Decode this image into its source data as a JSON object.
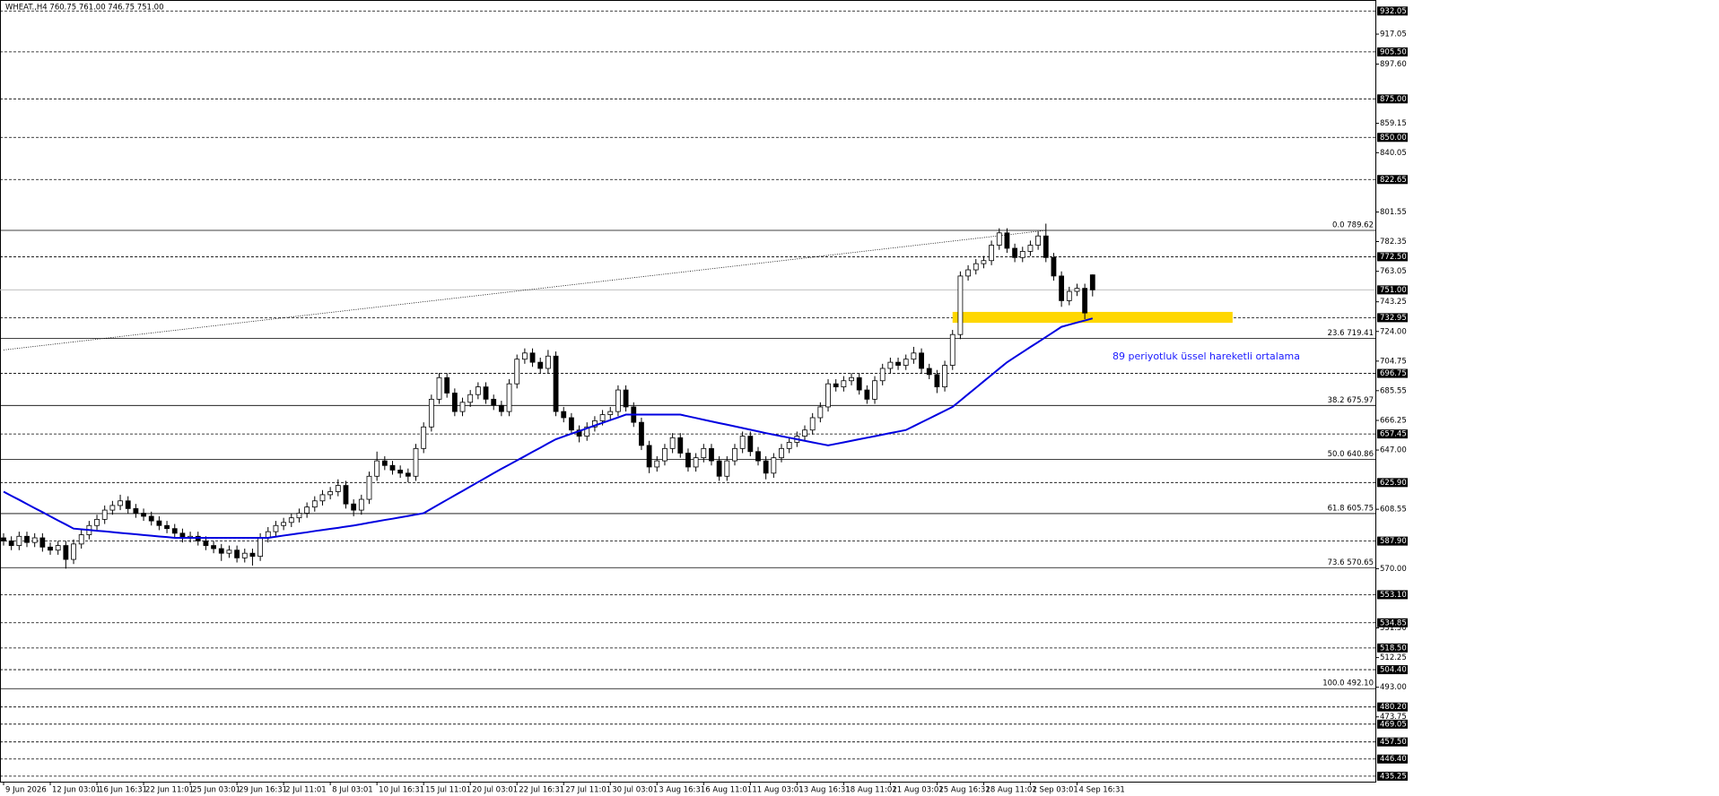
{
  "chart_data": {
    "type": "candlestick",
    "title": "WHEAT.,H4  760.75 761.00 746.75 751.00",
    "annotation": "89 periyotluk üssel hareketli ortalama",
    "ylim": [
      431.7,
      939.2
    ],
    "categories": [
      "9 Jun 2026",
      null,
      null,
      null,
      null,
      null,
      "12 Jun 03:01",
      null,
      null,
      null,
      null,
      null,
      "16 Jun 16:31",
      null,
      null,
      null,
      null,
      null,
      "22 Jun 11:01",
      null,
      null,
      null,
      null,
      null,
      "25 Jun 03:01",
      null,
      null,
      null,
      null,
      null,
      "29 Jun 16:31",
      null,
      null,
      null,
      null,
      null,
      "2 Jul 11:01",
      null,
      null,
      null,
      null,
      null,
      "8 Jul 03:01",
      null,
      null,
      null,
      null,
      null,
      "10 Jul 16:31",
      null,
      null,
      null,
      null,
      null,
      "15 Jul 11:01",
      null,
      null,
      null,
      null,
      null,
      "20 Jul 03:01",
      null,
      null,
      null,
      null,
      null,
      "22 Jul 16:31",
      null,
      null,
      null,
      null,
      null,
      "27 Jul 11:01",
      null,
      null,
      null,
      null,
      null,
      "30 Jul 03:01",
      null,
      null,
      null,
      null,
      null,
      "3 Aug 16:31",
      null,
      null,
      null,
      null,
      null,
      "6 Aug 11:01",
      null,
      null,
      null,
      null,
      null,
      "11 Aug 03:01",
      null,
      null,
      null,
      null,
      null,
      "13 Aug 16:31",
      null,
      null,
      null,
      null,
      null,
      "18 Aug 11:01",
      null,
      null,
      null,
      null,
      null,
      "21 Aug 03:01",
      null,
      null,
      null,
      null,
      null,
      "25 Aug 16:31",
      null,
      null,
      null,
      null,
      null,
      "28 Aug 11:01",
      null,
      null,
      null,
      null,
      null,
      "2 Sep 03:01",
      null,
      null,
      null,
      null,
      null,
      "4 Sep 16:31",
      null,
      null
    ],
    "candles": [
      [
        590,
        593,
        585,
        588
      ],
      [
        588,
        591,
        582,
        585
      ],
      [
        585,
        594,
        582,
        591
      ],
      [
        591,
        594,
        584,
        587
      ],
      [
        587,
        593,
        584,
        590
      ],
      [
        590,
        593,
        581,
        584
      ],
      [
        584,
        587,
        579,
        582
      ],
      [
        582,
        588,
        579,
        585
      ],
      [
        585,
        588,
        570,
        576
      ],
      [
        576,
        589,
        573,
        586
      ],
      [
        586,
        595,
        583,
        592
      ],
      [
        592,
        601,
        589,
        598
      ],
      [
        598,
        605,
        595,
        602
      ],
      [
        602,
        611,
        599,
        608
      ],
      [
        608,
        614,
        605,
        611
      ],
      [
        611,
        618,
        608,
        614
      ],
      [
        614,
        617,
        606,
        609
      ],
      [
        609,
        612,
        603,
        606
      ],
      [
        606,
        609,
        601,
        604
      ],
      [
        604,
        607,
        598,
        601
      ],
      [
        601,
        604,
        595,
        598
      ],
      [
        598,
        601,
        593,
        596
      ],
      [
        596,
        599,
        590,
        593
      ],
      [
        593,
        596,
        587,
        590
      ],
      [
        590,
        594,
        587,
        591
      ],
      [
        591,
        594,
        585,
        588
      ],
      [
        588,
        591,
        582,
        585
      ],
      [
        585,
        588,
        580,
        583
      ],
      [
        583,
        586,
        575,
        580
      ],
      [
        580,
        585,
        577,
        582
      ],
      [
        582,
        585,
        574,
        577
      ],
      [
        577,
        583,
        574,
        580
      ],
      [
        580,
        583,
        572,
        578
      ],
      [
        578,
        593,
        575,
        590
      ],
      [
        590,
        597,
        587,
        594
      ],
      [
        594,
        601,
        591,
        598
      ],
      [
        598,
        603,
        595,
        600
      ],
      [
        600,
        606,
        597,
        603
      ],
      [
        603,
        609,
        600,
        606
      ],
      [
        606,
        613,
        603,
        610
      ],
      [
        610,
        617,
        607,
        614
      ],
      [
        614,
        621,
        611,
        618
      ],
      [
        618,
        623,
        615,
        620
      ],
      [
        620,
        628,
        617,
        624
      ],
      [
        624,
        627,
        609,
        612
      ],
      [
        612,
        615,
        604,
        608
      ],
      [
        608,
        618,
        605,
        615
      ],
      [
        615,
        633,
        612,
        630
      ],
      [
        630,
        646,
        627,
        640
      ],
      [
        640,
        643,
        634,
        637
      ],
      [
        637,
        640,
        631,
        634
      ],
      [
        634,
        637,
        629,
        632
      ],
      [
        632,
        635,
        626,
        630
      ],
      [
        630,
        651,
        627,
        648
      ],
      [
        648,
        665,
        645,
        662
      ],
      [
        662,
        683,
        659,
        680
      ],
      [
        680,
        697,
        677,
        694
      ],
      [
        694,
        697,
        681,
        684
      ],
      [
        684,
        687,
        669,
        672
      ],
      [
        672,
        681,
        669,
        678
      ],
      [
        678,
        686,
        675,
        683
      ],
      [
        683,
        691,
        680,
        688
      ],
      [
        688,
        691,
        677,
        680
      ],
      [
        680,
        683,
        673,
        676
      ],
      [
        676,
        679,
        669,
        672
      ],
      [
        672,
        693,
        669,
        690
      ],
      [
        690,
        709,
        687,
        706
      ],
      [
        706,
        713,
        703,
        710
      ],
      [
        710,
        713,
        701,
        704
      ],
      [
        704,
        707,
        697,
        700
      ],
      [
        700,
        712,
        697,
        708
      ],
      [
        708,
        711,
        669,
        672
      ],
      [
        672,
        675,
        665,
        668
      ],
      [
        668,
        671,
        657,
        660
      ],
      [
        660,
        663,
        652,
        656
      ],
      [
        656,
        665,
        653,
        662
      ],
      [
        662,
        669,
        659,
        666
      ],
      [
        666,
        673,
        663,
        670
      ],
      [
        670,
        675,
        667,
        672
      ],
      [
        672,
        689,
        669,
        686
      ],
      [
        686,
        689,
        672,
        675
      ],
      [
        675,
        678,
        662,
        665
      ],
      [
        665,
        668,
        647,
        650
      ],
      [
        650,
        653,
        632,
        636
      ],
      [
        636,
        643,
        633,
        640
      ],
      [
        640,
        651,
        637,
        648
      ],
      [
        648,
        658,
        645,
        655
      ],
      [
        655,
        658,
        642,
        645
      ],
      [
        645,
        648,
        633,
        636
      ],
      [
        636,
        645,
        633,
        642
      ],
      [
        642,
        651,
        639,
        648
      ],
      [
        648,
        651,
        637,
        640
      ],
      [
        640,
        643,
        627,
        630
      ],
      [
        630,
        643,
        627,
        640
      ],
      [
        640,
        651,
        637,
        648
      ],
      [
        648,
        659,
        645,
        656
      ],
      [
        656,
        659,
        643,
        646
      ],
      [
        646,
        649,
        637,
        640
      ],
      [
        640,
        643,
        628,
        632
      ],
      [
        632,
        645,
        629,
        642
      ],
      [
        642,
        651,
        639,
        648
      ],
      [
        648,
        655,
        645,
        652
      ],
      [
        652,
        659,
        649,
        656
      ],
      [
        656,
        663,
        653,
        660
      ],
      [
        660,
        671,
        657,
        668
      ],
      [
        668,
        678,
        665,
        675
      ],
      [
        675,
        693,
        672,
        690
      ],
      [
        690,
        693,
        685,
        688
      ],
      [
        688,
        695,
        685,
        692
      ],
      [
        692,
        697,
        689,
        694
      ],
      [
        694,
        697,
        683,
        686
      ],
      [
        686,
        689,
        677,
        680
      ],
      [
        680,
        695,
        677,
        692
      ],
      [
        692,
        703,
        689,
        700
      ],
      [
        700,
        707,
        697,
        704
      ],
      [
        704,
        707,
        699,
        702
      ],
      [
        702,
        709,
        699,
        706
      ],
      [
        706,
        714,
        703,
        710
      ],
      [
        710,
        713,
        697,
        700
      ],
      [
        700,
        703,
        693,
        696
      ],
      [
        696,
        699,
        684,
        688
      ],
      [
        688,
        705,
        685,
        702
      ],
      [
        702,
        725,
        699,
        722
      ],
      [
        722,
        763,
        719,
        760
      ],
      [
        760,
        767,
        757,
        764
      ],
      [
        764,
        771,
        761,
        768
      ],
      [
        768,
        773,
        765,
        770
      ],
      [
        770,
        783,
        767,
        780
      ],
      [
        780,
        791,
        777,
        788
      ],
      [
        788,
        791,
        775,
        778
      ],
      [
        778,
        781,
        769,
        772
      ],
      [
        772,
        779,
        769,
        776
      ],
      [
        776,
        783,
        773,
        780
      ],
      [
        780,
        789,
        777,
        786
      ],
      [
        786,
        794,
        769,
        772
      ],
      [
        772,
        775,
        757,
        760
      ],
      [
        760,
        763,
        740,
        744
      ],
      [
        744,
        753,
        741,
        750
      ],
      [
        750,
        755,
        747,
        752
      ],
      [
        752,
        755,
        732,
        736
      ],
      [
        760.75,
        761,
        746.75,
        751
      ]
    ],
    "ema": {
      "color": "#0000e0",
      "values": [
        620,
        617.3,
        614.7,
        612,
        609.3,
        606.7,
        604,
        601.3,
        598.7,
        596,
        595.5,
        595.1,
        594.6,
        594.2,
        593.7,
        593.2,
        592.8,
        592.3,
        591.8,
        591.4,
        590.9,
        590.5,
        590,
        590,
        590,
        590,
        590,
        590,
        590,
        590,
        590,
        590,
        590,
        590,
        590,
        590.7,
        591.5,
        592.2,
        592.9,
        593.6,
        594.4,
        595.1,
        595.8,
        596.5,
        597.3,
        598,
        598.9,
        599.8,
        600.7,
        601.6,
        602.4,
        603.3,
        604.2,
        605.1,
        606,
        608.9,
        611.8,
        614.7,
        617.6,
        620.4,
        623.3,
        626.2,
        629.1,
        632,
        634.8,
        637.5,
        640.3,
        643,
        645.8,
        648.5,
        651.3,
        654,
        655.8,
        657.6,
        659.3,
        661.1,
        662.9,
        664.7,
        666.4,
        668.2,
        670,
        670,
        670,
        670,
        670,
        670,
        670,
        670,
        668.9,
        667.8,
        666.7,
        665.6,
        664.5,
        663.5,
        662.4,
        661.3,
        660.2,
        659.1,
        658,
        657,
        656,
        655,
        654,
        653,
        652,
        651,
        650,
        651,
        652,
        653,
        654,
        655,
        656,
        657,
        658,
        659,
        660,
        662.5,
        665,
        667.5,
        670,
        672.5,
        675,
        679.1,
        683.3,
        687.4,
        691.6,
        695.7,
        699.9,
        704,
        707.3,
        710.6,
        713.9,
        717.1,
        720.4,
        723.7,
        727,
        728.4,
        729.8,
        731.1,
        732.5
      ]
    },
    "yticks": [
      {
        "value": 917.05,
        "label": "917.05"
      },
      {
        "value": 897.6,
        "label": "897.60"
      },
      {
        "value": 859.15,
        "label": "859.15"
      },
      {
        "value": 840.05,
        "label": "840.05"
      },
      {
        "value": 801.55,
        "label": "801.55"
      },
      {
        "value": 782.35,
        "label": "782.35"
      },
      {
        "value": 763.05,
        "label": "763.05"
      },
      {
        "value": 743.25,
        "label": "743.25"
      },
      {
        "value": 724,
        "label": "724.00"
      },
      {
        "value": 704.75,
        "label": "704.75"
      },
      {
        "value": 685.55,
        "label": "685.55"
      },
      {
        "value": 666.25,
        "label": "666.25"
      },
      {
        "value": 647,
        "label": "647.00"
      },
      {
        "value": 608.55,
        "label": "608.55"
      },
      {
        "value": 570,
        "label": "570.00"
      },
      {
        "value": 531.5,
        "label": "531.50"
      },
      {
        "value": 512.25,
        "label": "512.25"
      },
      {
        "value": 493,
        "label": "493.00"
      },
      {
        "value": 473.75,
        "label": "473.75"
      }
    ],
    "levels": [
      {
        "value": 932.05,
        "label": "932.05"
      },
      {
        "value": 905.5,
        "label": "905.50"
      },
      {
        "value": 875,
        "label": "875.00"
      },
      {
        "value": 850,
        "label": "850.00"
      },
      {
        "value": 822.65,
        "label": "822.65"
      },
      {
        "value": 772.5,
        "label": "772.50"
      },
      {
        "value": 732.95,
        "label": "732.95"
      },
      {
        "value": 696.75,
        "label": "696.75"
      },
      {
        "value": 657.45,
        "label": "657.45"
      },
      {
        "value": 625.9,
        "label": "625.90"
      },
      {
        "value": 587.9,
        "label": "587.90"
      },
      {
        "value": 553.1,
        "label": "553.10"
      },
      {
        "value": 534.85,
        "label": "534.85"
      },
      {
        "value": 518.5,
        "label": "518.50"
      },
      {
        "value": 504.4,
        "label": "504.40"
      },
      {
        "value": 480.2,
        "label": "480.20"
      },
      {
        "value": 469.05,
        "label": "469.05"
      },
      {
        "value": 457.5,
        "label": "457.50"
      },
      {
        "value": 446.4,
        "label": "446.40"
      },
      {
        "value": 435.25,
        "label": "435.25"
      }
    ],
    "price_line": {
      "value": 751,
      "label": "751.00"
    },
    "fib": [
      {
        "value": 789.62,
        "label": "0.0 789.62"
      },
      {
        "value": 719.41,
        "label": "23.6 719.41"
      },
      {
        "value": 675.97,
        "label": "38.2 675.97"
      },
      {
        "value": 640.86,
        "label": "50.0 640.86"
      },
      {
        "value": 605.75,
        "label": "61.8 605.75"
      },
      {
        "value": 570.65,
        "label": "73.6 570.65"
      },
      {
        "value": 492.1,
        "label": "100.0 492.10"
      }
    ],
    "zone": {
      "low": 729.6,
      "high": 736.7,
      "from": 122,
      "to": 158,
      "color": "#ffd700"
    },
    "trendline": {
      "x": [
        0,
        134
      ],
      "y": [
        712,
        789.62
      ]
    }
  }
}
